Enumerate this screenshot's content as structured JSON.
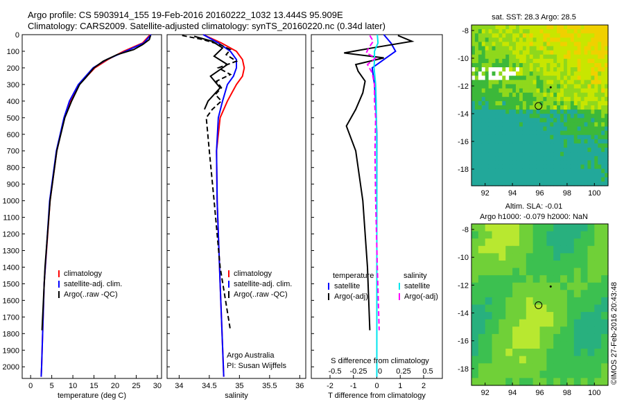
{
  "header": {
    "line1": "Argo profile: CS 5903914_155 19-Feb-2016 20160222_1032 13.444S 95.909E",
    "line2": "Climatology: CARS2009. Satellite-adjusted climatology: synTS_20160220.nc (0.34d later)"
  },
  "side_text": "©IMOS 27-Feb-2016 20:43:48",
  "colors": {
    "climatology": "#ff0000",
    "satellite": "#0000ff",
    "argo": "#000000",
    "cyan": "#00e5ee",
    "magenta": "#ff00ff"
  },
  "chart_data": [
    {
      "type": "line",
      "panel": "temperature",
      "xlabel": "temperature (deg C)",
      "xlim": [
        -2,
        31
      ],
      "ylim": [
        2070,
        0
      ],
      "xticks": [
        0,
        5,
        10,
        15,
        20,
        25,
        30
      ],
      "yticks": [
        0,
        100,
        200,
        300,
        400,
        500,
        600,
        700,
        800,
        900,
        1000,
        1100,
        1200,
        1300,
        1400,
        1500,
        1600,
        1700,
        1800,
        1900,
        2000
      ],
      "legend": [
        "climatology",
        "satellite-adj. clim.",
        "Argo(..raw -QC)"
      ],
      "series": [
        {
          "name": "climatology",
          "depth": [
            0,
            50,
            100,
            150,
            200,
            300,
            400,
            500,
            700,
            1000,
            1500,
            2000,
            2060
          ],
          "values": [
            28.3,
            26.5,
            22,
            18.3,
            15.2,
            11.5,
            9.4,
            8,
            6.2,
            4.6,
            3.2,
            2.6,
            2.5
          ]
        },
        {
          "name": "satellite-adj. clim.",
          "depth": [
            0,
            50,
            100,
            150,
            200,
            300,
            400,
            500,
            700,
            1000,
            1500,
            2000,
            2060
          ],
          "values": [
            28.5,
            26.8,
            22.5,
            18,
            14.8,
            11.3,
            9.2,
            7.9,
            6.1,
            4.5,
            3.2,
            2.6,
            2.5
          ]
        },
        {
          "name": "Argo(..raw -QC)",
          "depth": [
            5,
            30,
            60,
            90,
            120,
            160,
            200,
            260,
            300,
            400,
            500,
            700,
            1000,
            1400,
            1780
          ],
          "values": [
            28.4,
            28.1,
            26.5,
            24.4,
            20.5,
            17.2,
            15,
            13,
            11.6,
            9.7,
            8.1,
            6.2,
            4.6,
            3.4,
            2.7
          ]
        }
      ]
    },
    {
      "type": "line",
      "panel": "salinity",
      "xlabel": "salinity",
      "xlim": [
        33.8,
        36.1
      ],
      "ylim": [
        2070,
        0
      ],
      "xticks": [
        34,
        34.5,
        35,
        35.5,
        36
      ],
      "legend": [
        "climatology",
        "satellite-adj. clim.",
        "Argo(..raw -QC)"
      ],
      "annotation": [
        "Argo Australia",
        "PI: Susan Wijffels"
      ],
      "series": [
        {
          "name": "climatology",
          "depth": [
            0,
            50,
            100,
            150,
            200,
            250,
            300,
            400,
            500,
            700,
            1000,
            1500,
            2060
          ],
          "values": [
            34.4,
            34.7,
            34.95,
            35.05,
            35.08,
            35.05,
            34.95,
            34.8,
            34.68,
            34.62,
            34.63,
            34.68,
            34.74
          ]
        },
        {
          "name": "satellite-adj. clim.",
          "depth": [
            0,
            50,
            100,
            150,
            200,
            250,
            300,
            400,
            500,
            700,
            1000,
            1500,
            2060
          ],
          "values": [
            34.4,
            34.65,
            34.85,
            34.95,
            34.95,
            34.9,
            34.8,
            34.72,
            34.65,
            34.62,
            34.63,
            34.68,
            34.74
          ]
        },
        {
          "name": "Argo(..raw -QC)",
          "depth": [
            5,
            30,
            60,
            90,
            120,
            160,
            200,
            240,
            280,
            320,
            360,
            400,
            450,
            500,
            700,
            1000,
            1400,
            1780
          ],
          "values": [
            34.05,
            34.4,
            34.68,
            34.85,
            34.78,
            34.95,
            34.65,
            34.85,
            34.62,
            34.7,
            34.6,
            34.7,
            34.55,
            34.45,
            34.5,
            34.58,
            34.68,
            34.85
          ]
        },
        {
          "name": "Argo(..raw -QC) 2",
          "depth": [
            10,
            40,
            80,
            130,
            180,
            250,
            320,
            400,
            450
          ],
          "values": [
            34.25,
            34.55,
            34.72,
            34.58,
            34.8,
            34.52,
            34.68,
            34.48,
            34.42
          ]
        }
      ]
    },
    {
      "type": "line",
      "panel": "difference",
      "xlabel": "T difference from climatology",
      "top_label": "S difference from climatology",
      "xlim": [
        -2.8,
        2.8
      ],
      "ylim": [
        2070,
        0
      ],
      "xticks": [
        -2,
        -1,
        0,
        1,
        2
      ],
      "top_ticks": [
        "-0.5",
        "-0.25",
        "0",
        "0.25",
        "0.5"
      ],
      "legend_left": [
        "temperature",
        "satellite",
        "Argo(-adj)"
      ],
      "legend_right": [
        "salinity",
        "satellite",
        "Argo(-adj)"
      ],
      "series": [
        {
          "name": "T satellite",
          "depth": [
            0,
            50,
            100,
            150,
            200,
            300,
            400,
            600,
            1000,
            1500,
            2060
          ],
          "values": [
            0.3,
            0.6,
            0.8,
            0.3,
            -0.2,
            -0.1,
            -0.05,
            0,
            0,
            0,
            0
          ]
        },
        {
          "name": "T Argo(-adj)",
          "depth": [
            5,
            40,
            80,
            110,
            140,
            180,
            220,
            280,
            350,
            450,
            550,
            700,
            1000,
            1400,
            1780
          ],
          "values": [
            0.9,
            1.5,
            -0.2,
            -1.4,
            0.3,
            -0.9,
            -0.8,
            -0.5,
            -0.6,
            -0.9,
            -1.3,
            -0.9,
            -0.6,
            -0.4,
            -0.3
          ]
        },
        {
          "name": "S satellite",
          "depth": [
            0,
            50,
            100,
            150,
            200,
            300,
            400,
            600,
            1000,
            1500,
            2060
          ],
          "values": [
            0.02,
            0.05,
            -0.1,
            -0.1,
            -0.12,
            -0.05,
            -0.03,
            -0.01,
            0,
            0,
            0
          ]
        },
        {
          "name": "S Argo(-adj)",
          "depth": [
            5,
            40,
            80,
            110,
            140,
            180,
            230,
            300,
            400,
            500,
            700,
            1000,
            1400,
            1780
          ],
          "values": [
            -0.3,
            -0.15,
            -0.35,
            -0.45,
            -0.05,
            -0.4,
            -0.2,
            -0.1,
            -0.1,
            -0.05,
            -0.08,
            -0.05,
            0.02,
            0.1
          ]
        }
      ]
    },
    {
      "type": "heatmap",
      "panel": "sst",
      "title": "sat. SST: 28.3 Argo: 28.5",
      "xlim": [
        91,
        101
      ],
      "ylim": [
        -19.2,
        -7.6
      ],
      "xticks": [
        92,
        94,
        96,
        98,
        100
      ],
      "yticks": [
        -8,
        -10,
        -12,
        -14,
        -16,
        -18
      ],
      "marker": {
        "lon": 95.909,
        "lat": -13.444
      }
    },
    {
      "type": "heatmap",
      "panel": "sla",
      "title": "Altim. SLA: -0.01",
      "subtitle": "Argo h1000: -0.079 h2000: NaN",
      "xlim": [
        91,
        101
      ],
      "ylim": [
        -19.2,
        -7.6
      ],
      "xticks": [
        92,
        94,
        96,
        98,
        100
      ],
      "yticks": [
        -8,
        -10,
        -12,
        -14,
        -16,
        -18
      ],
      "marker": {
        "lon": 95.909,
        "lat": -13.444
      }
    }
  ]
}
